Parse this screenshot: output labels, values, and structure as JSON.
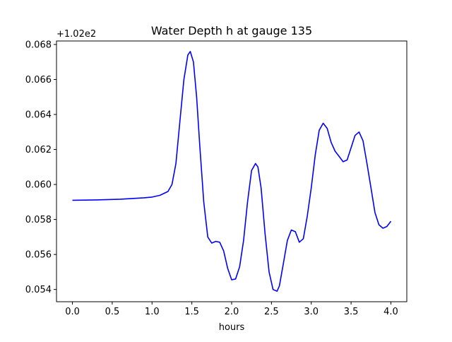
{
  "chart_data": {
    "type": "line",
    "title": "Water Depth h at gauge 135",
    "xlabel": "hours",
    "ylabel": "",
    "offset_text": "+1.02e2",
    "xlim": [
      -0.2,
      4.2
    ],
    "ylim": [
      0.0533,
      0.0682
    ],
    "xticks": [
      0.0,
      0.5,
      1.0,
      1.5,
      2.0,
      2.5,
      3.0,
      3.5,
      4.0
    ],
    "xtick_labels": [
      "0.0",
      "0.5",
      "1.0",
      "1.5",
      "2.0",
      "2.5",
      "3.0",
      "3.5",
      "4.0"
    ],
    "yticks": [
      0.054,
      0.056,
      0.058,
      0.06,
      0.062,
      0.064,
      0.066,
      0.068
    ],
    "ytick_labels": [
      "0.054",
      "0.056",
      "0.058",
      "0.060",
      "0.062",
      "0.064",
      "0.066",
      "0.068"
    ],
    "grid": false,
    "series": [
      {
        "color": "#0000ff",
        "x": [
          0.0,
          0.3,
          0.6,
          0.9,
          1.0,
          1.1,
          1.2,
          1.25,
          1.3,
          1.35,
          1.4,
          1.45,
          1.48,
          1.52,
          1.56,
          1.6,
          1.65,
          1.7,
          1.75,
          1.8,
          1.85,
          1.9,
          1.95,
          2.0,
          2.05,
          2.1,
          2.15,
          2.2,
          2.25,
          2.3,
          2.33,
          2.37,
          2.42,
          2.47,
          2.52,
          2.57,
          2.6,
          2.65,
          2.7,
          2.75,
          2.8,
          2.85,
          2.9,
          2.95,
          3.0,
          3.05,
          3.1,
          3.15,
          3.2,
          3.25,
          3.3,
          3.35,
          3.4,
          3.45,
          3.5,
          3.55,
          3.6,
          3.65,
          3.7,
          3.75,
          3.8,
          3.85,
          3.9,
          3.95,
          4.0
        ],
        "y": [
          0.0591,
          0.05912,
          0.05916,
          0.05924,
          0.05928,
          0.05938,
          0.0596,
          0.06,
          0.0612,
          0.0636,
          0.066,
          0.0674,
          0.0676,
          0.067,
          0.065,
          0.0622,
          0.059,
          0.057,
          0.05665,
          0.05675,
          0.0567,
          0.0562,
          0.0552,
          0.05455,
          0.0546,
          0.0553,
          0.0568,
          0.059,
          0.0608,
          0.0612,
          0.061,
          0.0598,
          0.0572,
          0.055,
          0.054,
          0.0539,
          0.0542,
          0.0555,
          0.0568,
          0.0574,
          0.0573,
          0.0567,
          0.0569,
          0.0582,
          0.0598,
          0.0617,
          0.0631,
          0.0635,
          0.0632,
          0.0624,
          0.0619,
          0.0616,
          0.0613,
          0.0614,
          0.0621,
          0.0628,
          0.063,
          0.0625,
          0.0612,
          0.0598,
          0.0584,
          0.0577,
          0.0575,
          0.0576,
          0.0579
        ]
      }
    ]
  }
}
